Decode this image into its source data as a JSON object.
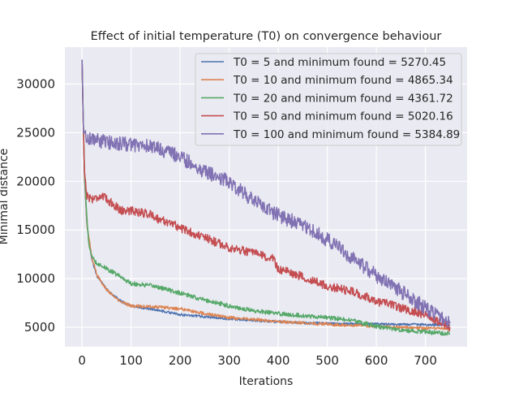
{
  "chart_data": {
    "type": "line",
    "title": "Effect of initial temperature (T0) on convergence behaviour",
    "xlabel": "Iterations",
    "ylabel": "Minimal distance",
    "xlim": [
      -35,
      785
    ],
    "ylim": [
      3000,
      33800
    ],
    "xticks": [
      0,
      100,
      200,
      300,
      400,
      500,
      600,
      700
    ],
    "yticks": [
      5000,
      10000,
      15000,
      20000,
      25000,
      30000
    ],
    "grid": true,
    "legend_position": "top-right",
    "series": [
      {
        "name": "T0 = 5 and minimum found = 5270.45",
        "color": "#4c72b0",
        "noise": 120,
        "points": [
          [
            0,
            32500
          ],
          [
            2,
            27000
          ],
          [
            5,
            20500
          ],
          [
            10,
            15500
          ],
          [
            20,
            12000
          ],
          [
            30,
            10300
          ],
          [
            50,
            8900
          ],
          [
            75,
            7800
          ],
          [
            100,
            7200
          ],
          [
            150,
            6800
          ],
          [
            200,
            6300
          ],
          [
            250,
            6100
          ],
          [
            300,
            5850
          ],
          [
            350,
            5700
          ],
          [
            400,
            5550
          ],
          [
            450,
            5450
          ],
          [
            500,
            5400
          ],
          [
            550,
            5350
          ],
          [
            600,
            5330
          ],
          [
            650,
            5300
          ],
          [
            700,
            5280
          ],
          [
            750,
            5270
          ]
        ]
      },
      {
        "name": "T0 = 10 and minimum found = 4865.34",
        "color": "#dd8452",
        "noise": 150,
        "points": [
          [
            0,
            32500
          ],
          [
            2,
            27000
          ],
          [
            5,
            20500
          ],
          [
            10,
            15500
          ],
          [
            20,
            12200
          ],
          [
            30,
            10400
          ],
          [
            50,
            8900
          ],
          [
            75,
            7700
          ],
          [
            100,
            7200
          ],
          [
            150,
            7100
          ],
          [
            200,
            6900
          ],
          [
            250,
            6400
          ],
          [
            300,
            6000
          ],
          [
            350,
            5800
          ],
          [
            400,
            5600
          ],
          [
            450,
            5450
          ],
          [
            500,
            5300
          ],
          [
            550,
            5200
          ],
          [
            600,
            5100
          ],
          [
            650,
            5000
          ],
          [
            700,
            4900
          ],
          [
            750,
            4870
          ]
        ]
      },
      {
        "name": "T0 = 20 and minimum found = 4361.72",
        "color": "#55a868",
        "noise": 220,
        "points": [
          [
            0,
            32500
          ],
          [
            2,
            27500
          ],
          [
            5,
            21000
          ],
          [
            10,
            16000
          ],
          [
            15,
            13000
          ],
          [
            25,
            11800
          ],
          [
            50,
            11000
          ],
          [
            75,
            10300
          ],
          [
            100,
            9500
          ],
          [
            150,
            9200
          ],
          [
            200,
            8500
          ],
          [
            250,
            7800
          ],
          [
            300,
            7200
          ],
          [
            350,
            6700
          ],
          [
            400,
            6400
          ],
          [
            450,
            6200
          ],
          [
            500,
            6000
          ],
          [
            550,
            5700
          ],
          [
            600,
            5100
          ],
          [
            650,
            4700
          ],
          [
            700,
            4500
          ],
          [
            750,
            4360
          ]
        ]
      },
      {
        "name": "T0 = 50 and minimum found = 5020.16",
        "color": "#c44e52",
        "noise": 450,
        "points": [
          [
            0,
            32500
          ],
          [
            2,
            27000
          ],
          [
            5,
            21000
          ],
          [
            10,
            18500
          ],
          [
            20,
            18200
          ],
          [
            40,
            18500
          ],
          [
            60,
            17800
          ],
          [
            80,
            17000
          ],
          [
            100,
            17000
          ],
          [
            140,
            16600
          ],
          [
            160,
            16000
          ],
          [
            180,
            15800
          ],
          [
            200,
            15200
          ],
          [
            250,
            14200
          ],
          [
            300,
            13200
          ],
          [
            350,
            12600
          ],
          [
            390,
            12000
          ],
          [
            400,
            11000
          ],
          [
            450,
            10200
          ],
          [
            500,
            9200
          ],
          [
            550,
            8700
          ],
          [
            600,
            7700
          ],
          [
            650,
            7000
          ],
          [
            700,
            6300
          ],
          [
            750,
            5020
          ]
        ]
      },
      {
        "name": "T0 = 100 and minimum found = 5384.89",
        "color": "#8172b3",
        "noise": 750,
        "points": [
          [
            0,
            32500
          ],
          [
            3,
            25000
          ],
          [
            10,
            24500
          ],
          [
            50,
            24000
          ],
          [
            100,
            23800
          ],
          [
            150,
            23500
          ],
          [
            200,
            22500
          ],
          [
            250,
            21000
          ],
          [
            300,
            20000
          ],
          [
            350,
            18000
          ],
          [
            400,
            16500
          ],
          [
            450,
            15500
          ],
          [
            500,
            14000
          ],
          [
            550,
            12200
          ],
          [
            600,
            10300
          ],
          [
            650,
            8700
          ],
          [
            700,
            7000
          ],
          [
            750,
            5385
          ]
        ]
      }
    ]
  }
}
